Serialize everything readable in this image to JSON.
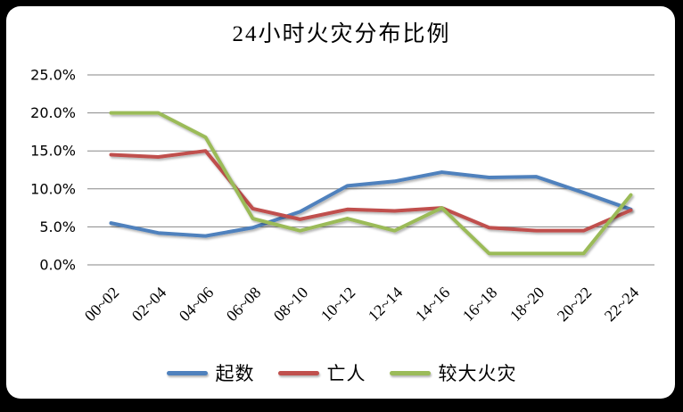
{
  "window": {
    "frame_color": "#000000",
    "card_color": "#ffffff",
    "gridline_color": "#878787"
  },
  "chart_data": {
    "type": "line",
    "title": "24小时火灾分布比例",
    "categories": [
      "00~02",
      "02~04",
      "04~06",
      "06~08",
      "08~10",
      "10~12",
      "12~14",
      "14~16",
      "16~18",
      "18~20",
      "20~22",
      "22~24"
    ],
    "series": [
      {
        "name": "起数",
        "color": "#4F81BD",
        "values": [
          5.5,
          4.2,
          3.8,
          4.9,
          7.0,
          10.4,
          11.0,
          12.2,
          11.5,
          11.6,
          9.5,
          7.3
        ]
      },
      {
        "name": "亡人",
        "color": "#C0504D",
        "values": [
          14.5,
          14.2,
          15.0,
          7.4,
          6.0,
          7.3,
          7.1,
          7.5,
          4.9,
          4.5,
          4.5,
          7.2
        ]
      },
      {
        "name": "较大火灾",
        "color": "#9BBB59",
        "values": [
          20.0,
          20.0,
          16.8,
          6.1,
          4.5,
          6.1,
          4.5,
          7.5,
          1.5,
          1.5,
          1.5,
          9.2
        ]
      }
    ],
    "xlabel": "",
    "ylabel": "",
    "ylim": [
      0,
      25
    ],
    "ytick_values": [
      0,
      5,
      10,
      15,
      20,
      25
    ],
    "ytick_labels": [
      "0.0%",
      "5.0%",
      "10.0%",
      "15.0%",
      "20.0%",
      "25.0%"
    ],
    "grid": "horizontal",
    "legend_position": "bottom"
  }
}
